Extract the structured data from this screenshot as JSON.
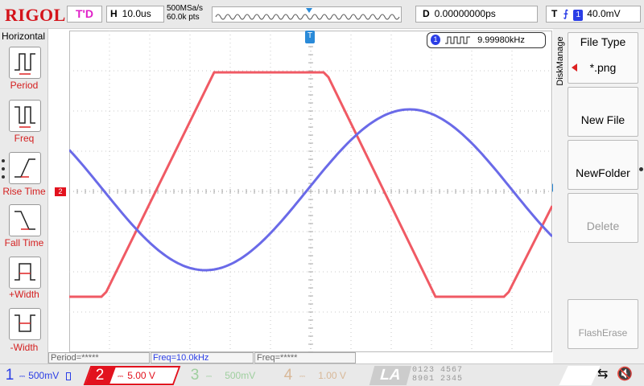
{
  "brand": "RIGOL",
  "trigger_status": "T'D",
  "horizontal": {
    "key": "H",
    "timebase": "10.0us",
    "sample_rate": "500MSa/s",
    "points": "60.0k pts"
  },
  "delay": {
    "key": "D",
    "value": "0.00000000ps"
  },
  "trigger": {
    "key": "T",
    "source": "1",
    "level": "40.0mV"
  },
  "left_menu": {
    "title": "Horizontal",
    "items": [
      {
        "label": "Period"
      },
      {
        "label": "Freq"
      },
      {
        "label": "Rise Time"
      },
      {
        "label": "Fall Time"
      },
      {
        "label": "+Width"
      },
      {
        "label": "-Width"
      }
    ]
  },
  "freq_counter": {
    "channel": "1",
    "value": "9.99980kHz"
  },
  "markers": {
    "ch2": "2",
    "trigger_pos": "T"
  },
  "right_menu": {
    "title": "DiskManage",
    "file_type_label": "File Type",
    "file_type_value": "*.png",
    "new_file": "New File",
    "new_folder": "NewFolder",
    "delete": "Delete",
    "flash_erase": "FlashErase"
  },
  "measurements": [
    {
      "text": "Period=*****"
    },
    {
      "text": "Freq=10.0kHz"
    },
    {
      "text": "Freq=*****"
    }
  ],
  "channels": [
    {
      "num": "1",
      "scale": "500mV",
      "color": "#2a3de6",
      "active": true
    },
    {
      "num": "2",
      "scale": "5.00 V",
      "color": "#e2121e",
      "active": true
    },
    {
      "num": "3",
      "scale": "500mV",
      "color": "#9fcf9f",
      "active": false
    },
    {
      "num": "4",
      "scale": "1.00 V",
      "color": "#e8c5a0",
      "active": false
    }
  ],
  "la": {
    "label": "LA",
    "row1": "0123 4567",
    "row2": "8901 2345"
  },
  "waveforms": {
    "ch1_color": "#6a6ae8",
    "ch2_color": "#f05a64"
  }
}
